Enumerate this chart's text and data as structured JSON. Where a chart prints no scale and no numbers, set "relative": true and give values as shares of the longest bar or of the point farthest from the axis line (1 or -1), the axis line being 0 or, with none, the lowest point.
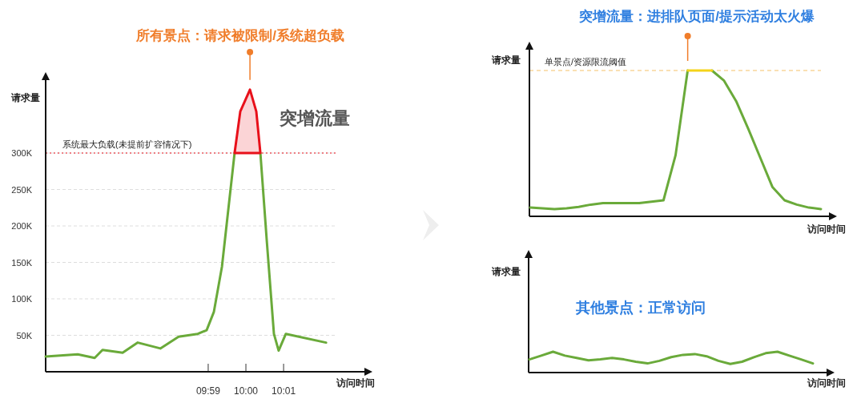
{
  "chart_data": [
    {
      "type": "line",
      "title": "所有景点：请求被限制/系统超负载",
      "ylabel": "请求量",
      "xlabel": "访问时间",
      "xlim": [
        9.9113,
        10.0525
      ],
      "xticks": [
        {
          "value": 9.9833,
          "label": "09:59"
        },
        {
          "value": 10,
          "label": "10:00"
        },
        {
          "value": 10.0167,
          "label": "10:01"
        }
      ],
      "ylim": [
        0,
        400000
      ],
      "yticks": [
        {
          "value": 50000,
          "label": "50K"
        },
        {
          "value": 100000,
          "label": "100K"
        },
        {
          "value": 150000,
          "label": "150K"
        },
        {
          "value": 200000,
          "label": "200K"
        },
        {
          "value": 250000,
          "label": "250K"
        },
        {
          "value": 300000,
          "label": "300K"
        }
      ],
      "grid": "y",
      "ref_lines": [
        {
          "axis": "y",
          "value": 300000,
          "label": "系统最大负载(未提前扩容情况下)",
          "color": "#e8101a",
          "line_style": "dotted"
        }
      ],
      "annotations": [
        "突增流量"
      ],
      "series": [
        {
          "color": "#6aaa3a",
          "x": [
            9.9113,
            9.9255,
            9.933,
            9.9365,
            9.9454,
            9.9521,
            9.9621,
            9.9702,
            9.9787,
            9.9826,
            9.9858,
            9.9894,
            9.995,
            10.0018,
            10.0064,
            10.0092,
            10.0124,
            10.0145,
            10.0177,
            10.0355
          ],
          "values": [
            21000,
            24000,
            19000,
            30000,
            26000,
            40000,
            32000,
            48000,
            52000,
            57000,
            82000,
            144000,
            300000,
            null,
            300000,
            181000,
            52000,
            29000,
            52000,
            40000
          ]
        },
        {
          "type": "area",
          "color": "#e8101a",
          "x": [
            9.995,
            9.9975,
            10.0018,
            10.0046,
            10.0064
          ],
          "values": [
            300000,
            357000,
            387000,
            357000,
            300000
          ]
        }
      ]
    },
    {
      "type": "line",
      "relative": true,
      "title": "突增流量：进排队页面/提示活动太火爆",
      "ylabel": "请求量",
      "xlabel": "访问时间",
      "categories": [
        null,
        null,
        null,
        null,
        null,
        null,
        null,
        null,
        null,
        null,
        null,
        null,
        null,
        null,
        null,
        null,
        null,
        null,
        null,
        null,
        null,
        null,
        null,
        null,
        null
      ],
      "ref_lines": [
        {
          "axis": "y",
          "value": 1,
          "label": "单景点/资源限流阈值",
          "color": "#f5c26b",
          "line_style": "dashed"
        }
      ],
      "series": [
        {
          "color": "#6aaa3a",
          "values": [
            0.06,
            0.055,
            0.05,
            0.055,
            0.065,
            0.08,
            0.09,
            0.09,
            0.09,
            0.09,
            0.1,
            0.11,
            0.42,
            1,
            null,
            1,
            0.93,
            0.79,
            0.6,
            0.4,
            0.2,
            0.11,
            0.08,
            0.06,
            0.05
          ]
        },
        {
          "color": "#f5d31a",
          "values": [
            null,
            null,
            null,
            null,
            null,
            null,
            null,
            null,
            null,
            null,
            null,
            null,
            null,
            1,
            1,
            1,
            null,
            null,
            null,
            null,
            null,
            null,
            null,
            null,
            null
          ]
        }
      ]
    },
    {
      "type": "line",
      "relative": true,
      "ylabel": "请求量",
      "xlabel": "访问时间",
      "annotations": [
        "其他景点：正常访问"
      ],
      "categories": [
        null,
        null,
        null,
        null,
        null,
        null,
        null,
        null,
        null,
        null,
        null,
        null,
        null,
        null,
        null,
        null,
        null,
        null,
        null,
        null,
        null,
        null,
        null,
        null,
        null
      ],
      "series": [
        {
          "color": "#6aaa3a",
          "values": [
            0.63,
            0.81,
            1,
            0.81,
            0.7,
            0.59,
            0.63,
            0.7,
            0.63,
            0.52,
            0.44,
            0.56,
            0.74,
            0.85,
            0.89,
            0.78,
            0.56,
            0.41,
            0.52,
            0.74,
            0.93,
            1,
            0.81,
            0.63,
            0.44
          ]
        }
      ]
    }
  ]
}
